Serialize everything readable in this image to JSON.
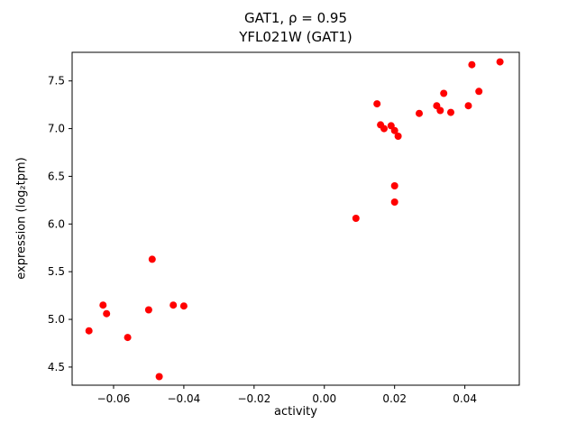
{
  "chart_data": {
    "type": "scatter",
    "title": "GAT1, ρ = 0.95",
    "subtitle": "YFL021W (GAT1)",
    "xlabel": "activity",
    "ylabel": "expression (log₂tpm)",
    "xlim": [
      -0.0718,
      0.0555
    ],
    "ylim": [
      4.31,
      7.8
    ],
    "xticks": [
      -0.06,
      -0.04,
      -0.02,
      0.0,
      0.02,
      0.04
    ],
    "xtick_labels": [
      "−0.06",
      "−0.04",
      "−0.02",
      "0.00",
      "0.02",
      "0.04"
    ],
    "yticks": [
      4.5,
      5.0,
      5.5,
      6.0,
      6.5,
      7.0,
      7.5
    ],
    "ytick_labels": [
      "4.5",
      "5.0",
      "5.5",
      "6.0",
      "6.5",
      "7.0",
      "7.5"
    ],
    "legend": null,
    "grid": false,
    "marker_color": "#ff0000",
    "marker_radius": 4,
    "points": [
      [
        -0.067,
        4.88
      ],
      [
        -0.063,
        5.15
      ],
      [
        -0.062,
        5.06
      ],
      [
        -0.056,
        4.81
      ],
      [
        -0.05,
        5.1
      ],
      [
        -0.049,
        5.63
      ],
      [
        -0.047,
        4.4
      ],
      [
        -0.043,
        5.15
      ],
      [
        -0.04,
        5.14
      ],
      [
        0.009,
        6.06
      ],
      [
        0.015,
        7.26
      ],
      [
        0.016,
        7.04
      ],
      [
        0.017,
        7.0
      ],
      [
        0.019,
        7.03
      ],
      [
        0.02,
        6.98
      ],
      [
        0.021,
        6.92
      ],
      [
        0.02,
        6.4
      ],
      [
        0.02,
        6.23
      ],
      [
        0.027,
        7.16
      ],
      [
        0.032,
        7.24
      ],
      [
        0.033,
        7.19
      ],
      [
        0.034,
        7.37
      ],
      [
        0.036,
        7.17
      ],
      [
        0.041,
        7.24
      ],
      [
        0.042,
        7.67
      ],
      [
        0.044,
        7.39
      ],
      [
        0.05,
        7.7
      ]
    ]
  }
}
